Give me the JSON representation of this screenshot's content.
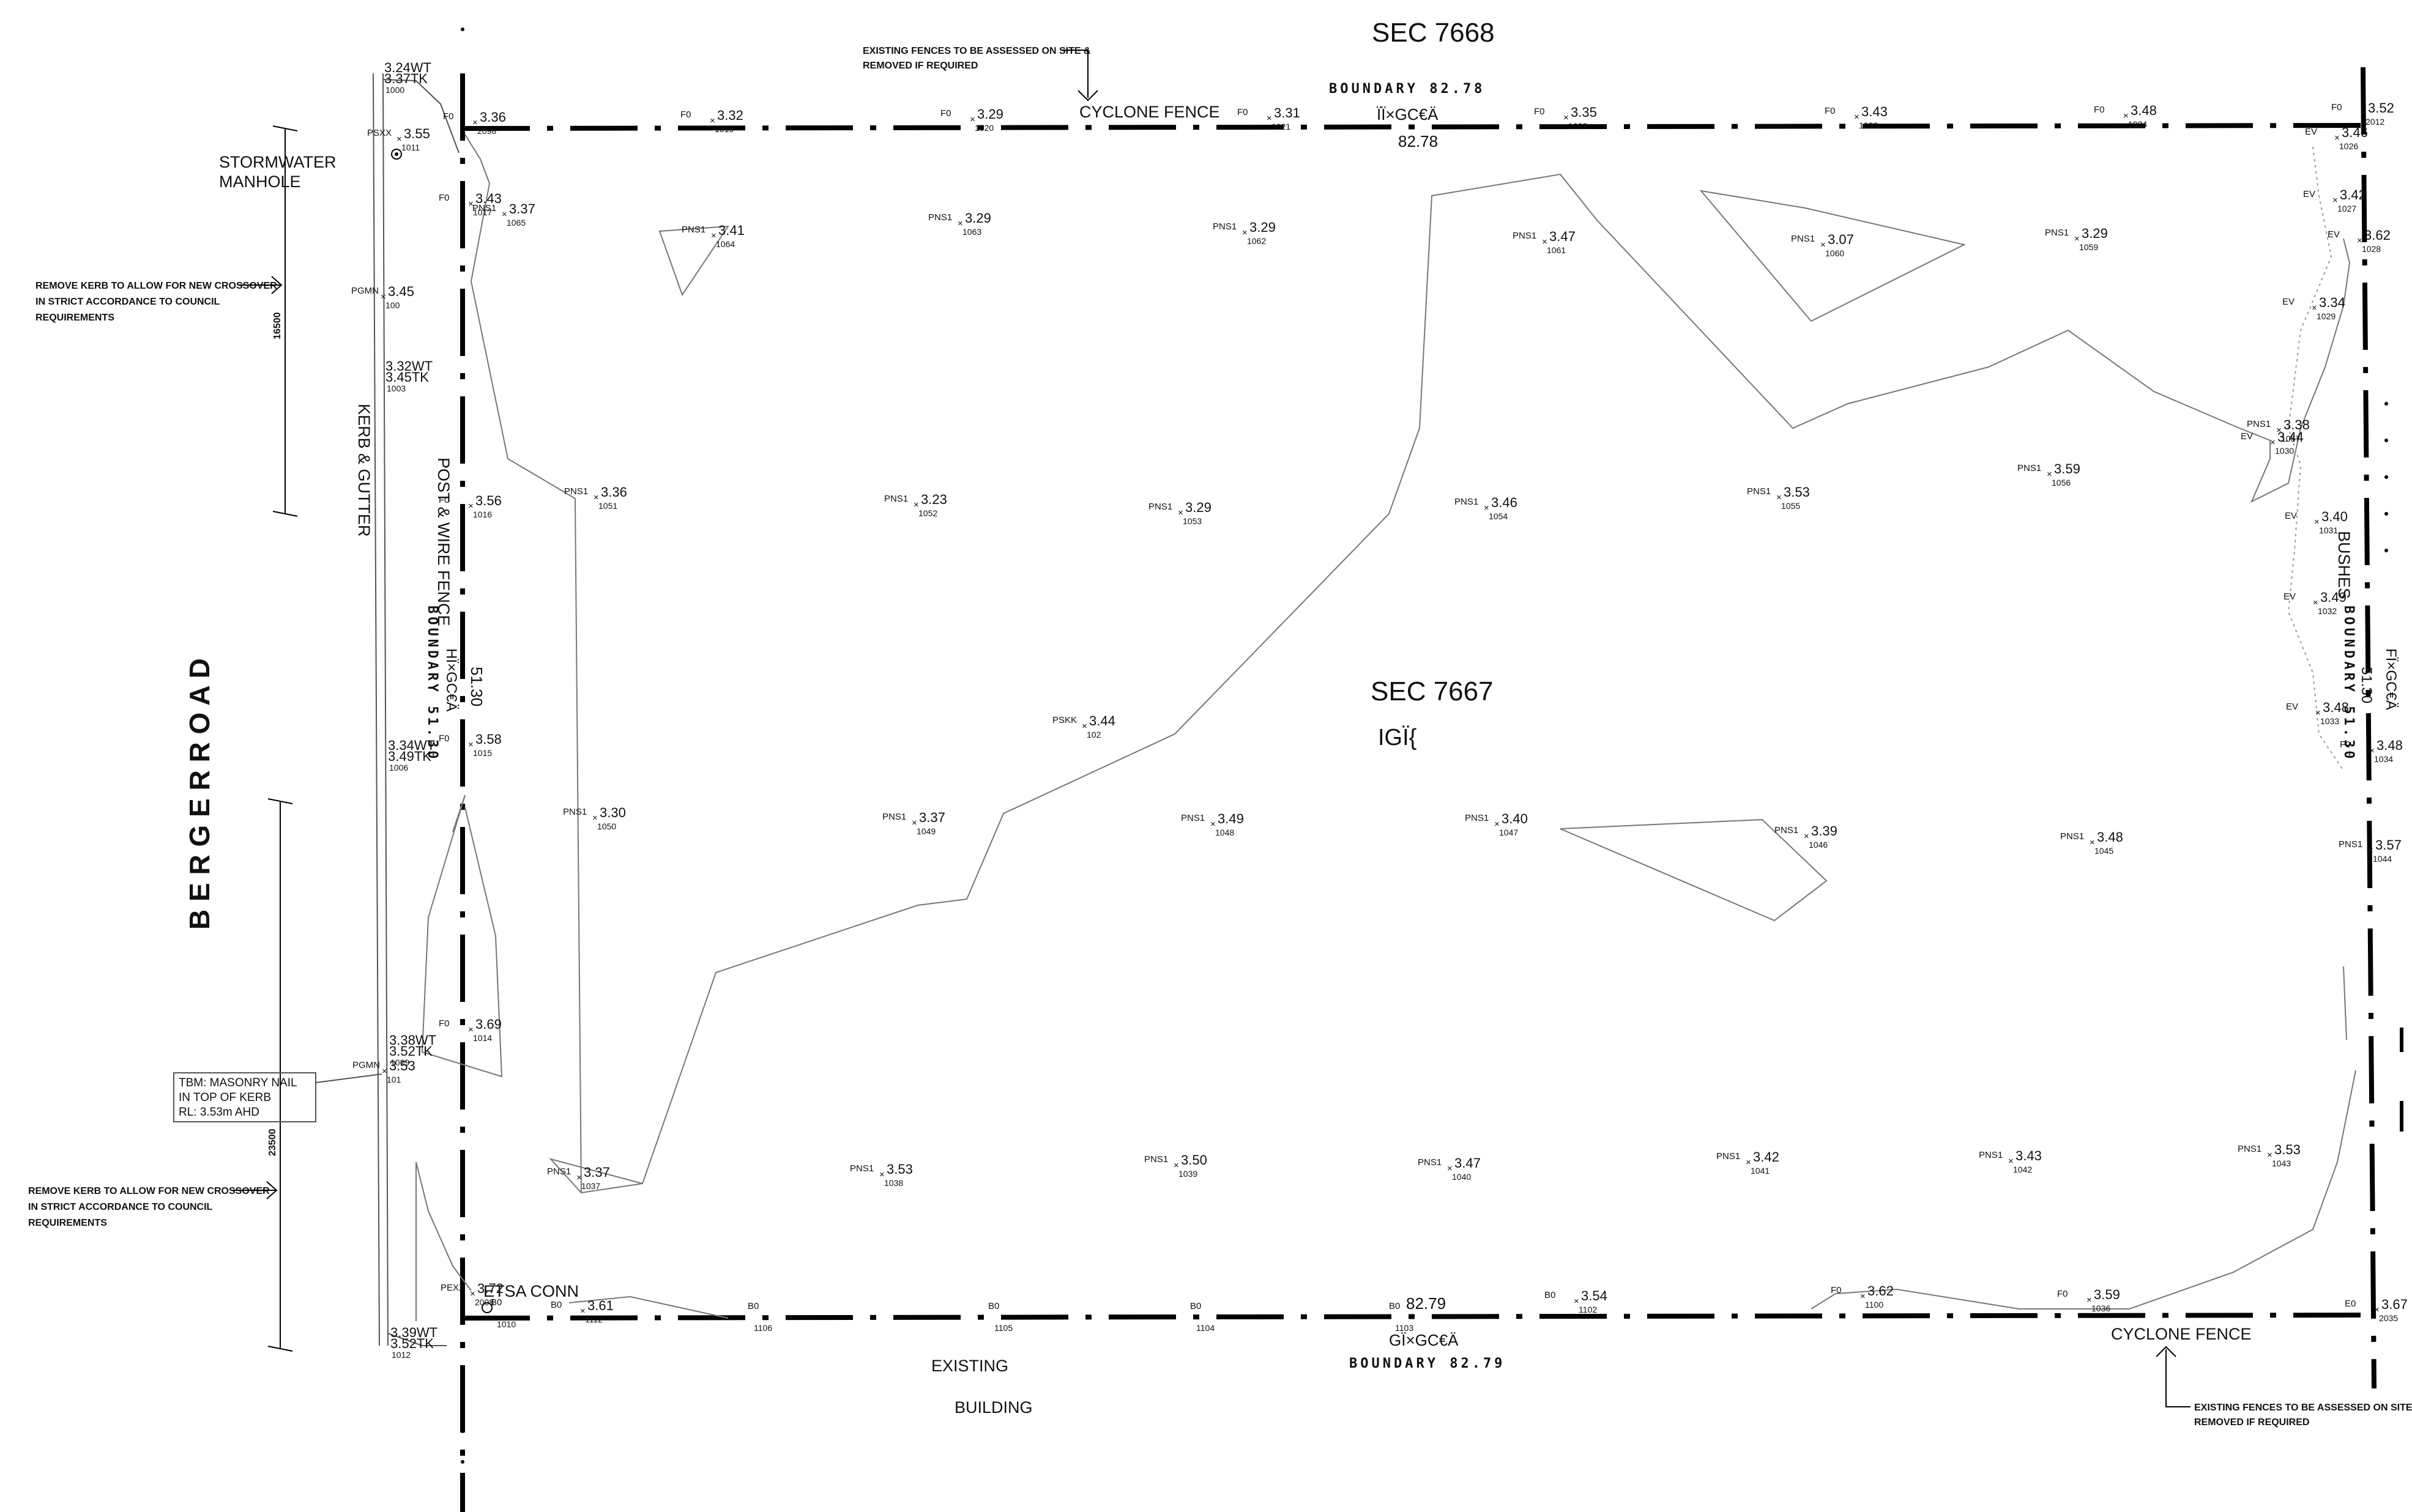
{
  "sections": {
    "north": "SEC 7668",
    "main": "SEC 7667",
    "main_code": "IGÏ{"
  },
  "road": "B E R G E R   R O A D",
  "labels": {
    "stormwater": [
      "STORMWATER",
      "MANHOLE"
    ],
    "kerb_gutter": "KERB & GUTTER",
    "post_wire_fence": "POST & WIRE FENCE",
    "cyclone_fence_top": "CYCLONE FENCE",
    "cyclone_fence_bottom": "CYCLONE FENCE",
    "bushes": "BUSHES",
    "etsa": "ETSA CONN",
    "existing": "EXISTING",
    "building": "BUILDING"
  },
  "boundaries": {
    "north": {
      "label": "BOUNDARY  82.78",
      "value": "82.78",
      "code": "ÏÏ×GC€Ä"
    },
    "south": {
      "label": "BOUNDARY  82.79",
      "value": "82.79",
      "code": "GÏ×GC€Ä"
    },
    "west": {
      "label": "BOUNDARY  51.30",
      "value": "51.30",
      "code": "HÏ×GC€Ä"
    },
    "east": {
      "label": "BOUNDARY  51.30",
      "value": "51.30",
      "code": "FÏ×GC€Ä"
    }
  },
  "notes": {
    "fence_top": [
      "EXISTING FENCES TO BE ASSESSED ON SITE &",
      "REMOVED IF REQUIRED"
    ],
    "fence_bottom": [
      "EXISTING FENCES TO BE ASSESSED ON SITE &",
      "REMOVED IF REQUIRED"
    ],
    "kerb_top": [
      "REMOVE KERB TO ALLOW FOR NEW CROSSOVER",
      "IN STRICT ACCORDANCE TO COUNCIL",
      "REQUIREMENTS"
    ],
    "kerb_bottom": [
      "REMOVE KERB TO ALLOW FOR NEW CROSSOVER",
      "IN STRICT ACCORDANCE TO COUNCIL",
      "REQUIREMENTS"
    ]
  },
  "tbm": [
    "TBM: MASONRY NAIL",
    "IN TOP OF KERB",
    "RL:  3.53m AHD"
  ],
  "dimensions": {
    "upper": "16500",
    "lower": "23500"
  },
  "points": [
    {
      "code": "PNS1",
      "level": "3.37",
      "id": "1065"
    },
    {
      "code": "PNS1",
      "level": "3.41",
      "id": "1064"
    },
    {
      "code": "PNS1",
      "level": "3.29",
      "id": "1063"
    },
    {
      "code": "PNS1",
      "level": "3.29",
      "id": "1062"
    },
    {
      "code": "PNS1",
      "level": "3.47",
      "id": "1061"
    },
    {
      "code": "PNS1",
      "level": "3.07",
      "id": "1060"
    },
    {
      "code": "PNS1",
      "level": "3.29",
      "id": "1059"
    },
    {
      "code": "PNS1",
      "level": "3.36",
      "id": "1051"
    },
    {
      "code": "PNS1",
      "level": "3.23",
      "id": "1052"
    },
    {
      "code": "PNS1",
      "level": "3.29",
      "id": "1053"
    },
    {
      "code": "PNS1",
      "level": "3.46",
      "id": "1054"
    },
    {
      "code": "PNS1",
      "level": "3.53",
      "id": "1055"
    },
    {
      "code": "PNS1",
      "level": "3.59",
      "id": "1056"
    },
    {
      "code": "PNS1",
      "level": "3.38",
      "id": "1057"
    },
    {
      "code": "PNS1",
      "level": "3.30",
      "id": "1050"
    },
    {
      "code": "PNS1",
      "level": "3.37",
      "id": "1049"
    },
    {
      "code": "PNS1",
      "level": "3.49",
      "id": "1048"
    },
    {
      "code": "PNS1",
      "level": "3.40",
      "id": "1047"
    },
    {
      "code": "PNS1",
      "level": "3.39",
      "id": "1046"
    },
    {
      "code": "PNS1",
      "level": "3.48",
      "id": "1045"
    },
    {
      "code": "PNS1",
      "level": "3.57",
      "id": "1044"
    },
    {
      "code": "PNS1",
      "level": "3.37",
      "id": "1037"
    },
    {
      "code": "PNS1",
      "level": "3.53",
      "id": "1038"
    },
    {
      "code": "PNS1",
      "level": "3.50",
      "id": "1039"
    },
    {
      "code": "PNS1",
      "level": "3.47",
      "id": "1040"
    },
    {
      "code": "PNS1",
      "level": "3.42",
      "id": "1041"
    },
    {
      "code": "PNS1",
      "level": "3.43",
      "id": "1042"
    },
    {
      "code": "PNS1",
      "level": "3.53",
      "id": "1043"
    },
    {
      "code": "PSKK",
      "level": "3.44",
      "id": "102"
    },
    {
      "code": "F0",
      "level": "3.36",
      "id": "2098"
    },
    {
      "code": "F0",
      "level": "3.32",
      "id": "1019"
    },
    {
      "code": "F0",
      "level": "3.29",
      "id": "1020"
    },
    {
      "code": "F0",
      "level": "3.31",
      "id": "1021"
    },
    {
      "code": "F0",
      "level": "3.35",
      "id": "1022"
    },
    {
      "code": "F0",
      "level": "3.43",
      "id": "1023"
    },
    {
      "code": "F0",
      "level": "3.48",
      "id": "1024"
    },
    {
      "code": "F0",
      "level": "3.52",
      "id": "2012"
    },
    {
      "code": "F0",
      "level": "3.43",
      "id": "1017"
    },
    {
      "code": "F0",
      "level": "3.56",
      "id": "1016"
    },
    {
      "code": "F0",
      "level": "3.58",
      "id": "1015"
    },
    {
      "code": "F0",
      "level": "3.69",
      "id": "1014"
    },
    {
      "code": "PSXX",
      "level": "3.55",
      "id": "1011"
    },
    {
      "code": "PGMN",
      "level": "3.45",
      "id": "100"
    },
    {
      "code": "PGMN",
      "level": "3.53",
      "id": "101"
    },
    {
      "code": "EV",
      "level": "3.46",
      "id": "1026"
    },
    {
      "code": "EV",
      "level": "3.42",
      "id": "1027"
    },
    {
      "code": "EV",
      "level": "3.62",
      "id": "1028"
    },
    {
      "code": "EV",
      "level": "3.34",
      "id": "1029"
    },
    {
      "code": "EV",
      "level": "3.44",
      "id": "1030"
    },
    {
      "code": "EV",
      "level": "3.40",
      "id": "1031"
    },
    {
      "code": "EV",
      "level": "3.49",
      "id": "1032"
    },
    {
      "code": "EV",
      "level": "3.48",
      "id": "1033"
    },
    {
      "code": "F0",
      "level": "3.48",
      "id": "1034"
    },
    {
      "code": "B0",
      "level": "3.61",
      "id": "1112"
    },
    {
      "code": "B0",
      "level": "3.54",
      "id": "1102"
    },
    {
      "code": "F0",
      "level": "3.62",
      "id": "1100"
    },
    {
      "code": "F0",
      "level": "3.59",
      "id": "1036"
    },
    {
      "code": "E0",
      "level": "3.67",
      "id": "2035"
    },
    {
      "code": "PEXX",
      "level": "3.72",
      "id": "2008"
    }
  ],
  "kerb_levels": [
    {
      "a": "3.24WT",
      "b": "3.37TK",
      "id": "1000"
    },
    {
      "a": "3.32WT",
      "b": "3.45TK",
      "id": "1003"
    },
    {
      "a": "3.34WT",
      "b": "3.49TK",
      "id": "1006"
    },
    {
      "a": "3.38WT",
      "b": "3.52TK",
      "id": "1009"
    },
    {
      "a": "3.39WT",
      "b": "3.52TK",
      "id": "1012"
    }
  ],
  "bottom_ids": [
    "1010",
    "1106",
    "1105",
    "1104",
    "1103"
  ],
  "bottom_codes": [
    "B0",
    "B0",
    "B0",
    "B0",
    "B0"
  ]
}
